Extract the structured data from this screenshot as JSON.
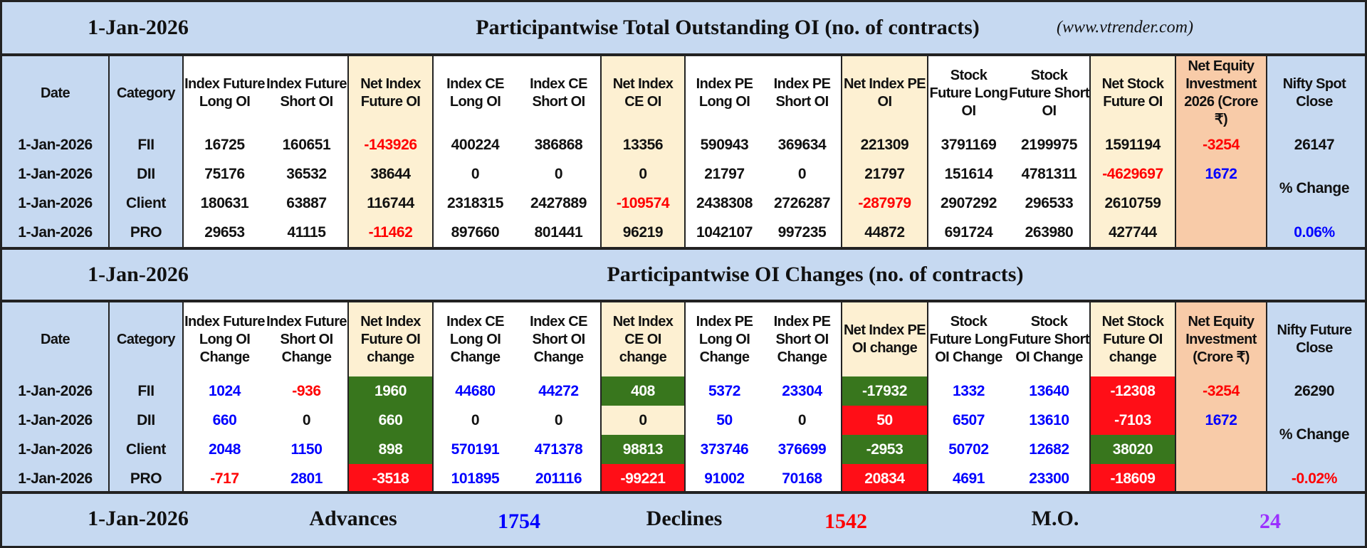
{
  "colors": {
    "light_blue": "#c6d9f1",
    "cream": "#fdf0d2",
    "peach": "#f8cba8",
    "green": "#38761d",
    "red_fill": "#ff0e17",
    "blue_text": "#0000ff",
    "red_text": "#ff0000",
    "purple_text": "#9b30ff"
  },
  "section1": {
    "date": "1-Jan-2026",
    "title": "Participantwise Total Outstanding OI (no. of contracts)",
    "site": "(www.vtrender.com)",
    "headers": [
      "Date",
      "Category",
      "Index Future Long OI",
      "Index Future Short OI",
      "Net Index Future OI",
      "Index CE Long OI",
      "Index CE Short OI",
      "Net Index CE OI",
      "Index PE Long OI",
      "Index PE Short OI",
      "Net Index PE OI",
      "Stock Future Long OI",
      "Stock Future Short OI",
      "Net Stock Future OI",
      "Net Equity Investment 2026 (Crore ₹)",
      "Nifty Spot Close"
    ],
    "rows": [
      {
        "date": "1-Jan-2026",
        "category": "FII",
        "values": [
          "16725",
          "160651",
          "-143926",
          "400224",
          "386868",
          "13356",
          "590943",
          "369634",
          "221309",
          "3791169",
          "2199975",
          "1591194"
        ],
        "net_equity": "-3254"
      },
      {
        "date": "1-Jan-2026",
        "category": "DII",
        "values": [
          "75176",
          "36532",
          "38644",
          "0",
          "0",
          "0",
          "21797",
          "0",
          "21797",
          "151614",
          "4781311",
          "-4629697"
        ],
        "net_equity": "1672"
      },
      {
        "date": "1-Jan-2026",
        "category": "Client",
        "values": [
          "180631",
          "63887",
          "116744",
          "2318315",
          "2427889",
          "-109574",
          "2438308",
          "2726287",
          "-287979",
          "2907292",
          "296533",
          "2610759"
        ],
        "net_equity": ""
      },
      {
        "date": "1-Jan-2026",
        "category": "PRO",
        "values": [
          "29653",
          "41115",
          "-11462",
          "897660",
          "801441",
          "96219",
          "1042107",
          "997235",
          "44872",
          "691724",
          "263980",
          "427744"
        ],
        "net_equity": ""
      }
    ],
    "nifty_close": "26147",
    "pct_label": "% Change",
    "pct_value": "0.06%"
  },
  "section2": {
    "date": "1-Jan-2026",
    "title": "Participantwise OI Changes (no. of contracts)",
    "headers": [
      "Date",
      "Category",
      "Index Future Long OI Change",
      "Index Future Short OI Change",
      "Net Index Future OI change",
      "Index CE Long OI Change",
      "Index CE Short OI Change",
      "Net Index CE OI change",
      "Index PE Long OI Change",
      "Index PE Short OI Change",
      "Net Index PE OI change",
      "Stock Future Long OI Change",
      "Stock Future Short OI Change",
      "Net Stock Future OI change",
      "Net Equity Investment (Crore ₹)",
      "Nifty Future Close"
    ],
    "rows": [
      {
        "date": "1-Jan-2026",
        "category": "FII",
        "values": [
          "1024",
          "-936",
          "1960",
          "44680",
          "44272",
          "408",
          "5372",
          "23304",
          "-17932",
          "1332",
          "13640",
          "-12308"
        ],
        "net_fills": [
          "green",
          "green",
          "green",
          "red"
        ],
        "net_equity": "-3254"
      },
      {
        "date": "1-Jan-2026",
        "category": "DII",
        "values": [
          "660",
          "0",
          "660",
          "0",
          "0",
          "0",
          "50",
          "0",
          "50",
          "6507",
          "13610",
          "-7103"
        ],
        "net_fills": [
          "green",
          "none",
          "red",
          "red"
        ],
        "net_equity": "1672"
      },
      {
        "date": "1-Jan-2026",
        "category": "Client",
        "values": [
          "2048",
          "1150",
          "898",
          "570191",
          "471378",
          "98813",
          "373746",
          "376699",
          "-2953",
          "50702",
          "12682",
          "38020"
        ],
        "net_fills": [
          "green",
          "green",
          "green",
          "green"
        ],
        "net_equity": ""
      },
      {
        "date": "1-Jan-2026",
        "category": "PRO",
        "values": [
          "-717",
          "2801",
          "-3518",
          "101895",
          "201116",
          "-99221",
          "91002",
          "70168",
          "20834",
          "4691",
          "23300",
          "-18609"
        ],
        "net_fills": [
          "red",
          "red",
          "red",
          "red"
        ],
        "net_equity": ""
      }
    ],
    "nifty_close": "26290",
    "pct_label": "% Change",
    "pct_value": "-0.02%"
  },
  "footer": {
    "date": "1-Jan-2026",
    "advances_label": "Advances",
    "advances": "1754",
    "declines_label": "Declines",
    "declines": "1542",
    "mo_label": "M.O.",
    "mo": "24"
  }
}
